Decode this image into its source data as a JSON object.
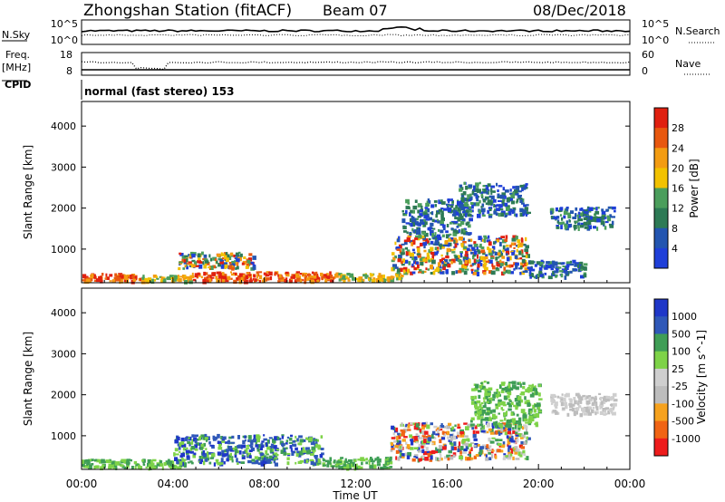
{
  "header": {
    "station_title": "Zhongshan Station (fitACF)",
    "beam": "Beam 07",
    "date": "08/Dec/2018"
  },
  "panel_labels": {
    "nsky": "N.Sky",
    "nsearch": "N.Search",
    "freq_line1": "Freq.",
    "freq_line2": "[MHz]",
    "nave": "Nave",
    "cpid": "CPID",
    "cpid_value": "normal (fast stereo) 153"
  },
  "noise_axis": {
    "left_ticks": [
      "10^5",
      "10^0"
    ],
    "right_ticks": [
      "10^5",
      "10^0"
    ]
  },
  "freq_axis": {
    "left_ticks": [
      "18",
      "8"
    ],
    "right_ticks": [
      "60",
      "0"
    ]
  },
  "colors": {
    "power_scale": [
      "#1f3fd8",
      "#2355b0",
      "#2d7a55",
      "#4b9e5c",
      "#f2c200",
      "#f39c12",
      "#e8580f",
      "#e02010"
    ],
    "velocity_scale": [
      "#ee1c1c",
      "#f06414",
      "#f6a21e",
      "#bdbdbd",
      "#cfcfcf",
      "#7ed348",
      "#3f9e56",
      "#2f58b8",
      "#1f37c8"
    ]
  },
  "chart_data": [
    {
      "type": "heatmap",
      "title": "",
      "parameter": "Power",
      "colorbar_label": "Power [dB]",
      "colorbar_ticks": [
        "28",
        "24",
        "20",
        "16",
        "12",
        "8",
        "4"
      ],
      "xlabel": "",
      "ylabel": "Slant Range [km]",
      "x_ticks": [
        "00:00",
        "04:00",
        "08:00",
        "12:00",
        "16:00",
        "20:00",
        "00:00"
      ],
      "y_ticks": [
        "4000",
        "3000",
        "2000",
        "1000"
      ],
      "xlim_hours": [
        0,
        24
      ],
      "ylim_km": [
        180,
        4600
      ],
      "regions": [
        {
          "t": [
            0.0,
            2.6
          ],
          "r": [
            200,
            380
          ],
          "level": "high"
        },
        {
          "t": [
            2.6,
            4.8
          ],
          "r": [
            200,
            340
          ],
          "level": "medium"
        },
        {
          "t": [
            4.8,
            11.2
          ],
          "r": [
            200,
            420
          ],
          "level": "high"
        },
        {
          "t": [
            4.2,
            7.5
          ],
          "r": [
            500,
            900
          ],
          "level": "mixed"
        },
        {
          "t": [
            11.2,
            14.0
          ],
          "r": [
            220,
            380
          ],
          "level": "medium"
        },
        {
          "t": [
            13.5,
            19.5
          ],
          "r": [
            400,
            1300
          ],
          "level": "mixed"
        },
        {
          "t": [
            14.0,
            17.0
          ],
          "r": [
            1300,
            2200
          ],
          "level": "low"
        },
        {
          "t": [
            16.5,
            19.5
          ],
          "r": [
            1800,
            2600
          ],
          "level": "low"
        },
        {
          "t": [
            20.5,
            23.3
          ],
          "r": [
            1500,
            2000
          ],
          "level": "low"
        },
        {
          "t": [
            19.5,
            22.0
          ],
          "r": [
            300,
            700
          ],
          "level": "low"
        }
      ]
    },
    {
      "type": "heatmap",
      "title": "",
      "parameter": "Velocity",
      "colorbar_label": "Velocity [m s^-1]",
      "colorbar_ticks": [
        "1000",
        "500",
        "100",
        "25",
        "-25",
        "-100",
        "-500",
        "-1000"
      ],
      "xlabel": "Time UT",
      "ylabel": "Slant Range [km]",
      "x_ticks": [
        "00:00",
        "04:00",
        "08:00",
        "12:00",
        "16:00",
        "20:00",
        "00:00"
      ],
      "y_ticks": [
        "4000",
        "3000",
        "2000",
        "1000"
      ],
      "xlim_hours": [
        0,
        24
      ],
      "ylim_km": [
        180,
        4600
      ],
      "regions": [
        {
          "t": [
            0.0,
            4.5
          ],
          "r": [
            200,
            400
          ],
          "v": "slow-positive"
        },
        {
          "t": [
            4.0,
            10.5
          ],
          "r": [
            300,
            1000
          ],
          "v": "positive-mixed"
        },
        {
          "t": [
            10.5,
            13.5
          ],
          "r": [
            200,
            450
          ],
          "v": "slow-positive"
        },
        {
          "t": [
            13.5,
            19.5
          ],
          "r": [
            400,
            1300
          ],
          "v": "mixed"
        },
        {
          "t": [
            17.0,
            20.0
          ],
          "r": [
            1200,
            2300
          ],
          "v": "slow-positive"
        },
        {
          "t": [
            20.5,
            23.3
          ],
          "r": [
            1500,
            2000
          ],
          "v": "near-zero"
        }
      ]
    }
  ]
}
